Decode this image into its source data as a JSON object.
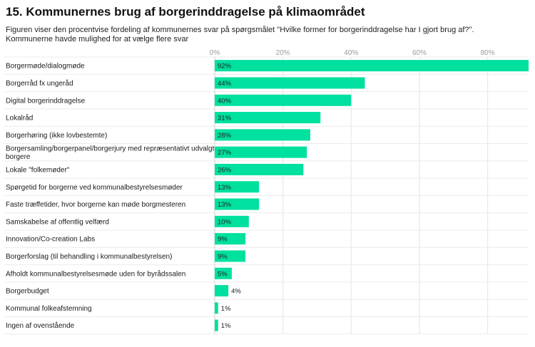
{
  "title": "15. Kommunernes brug af borgerinddragelse på klimaområdet",
  "subtitle": [
    "Figuren viser den procentvise fordeling af kommunernes svar på spørgsmålet \"Hvilke former for borgerinddragelse har I gjort brug af?\".",
    "Kommunerne havde mulighed for at vælge flere svar"
  ],
  "colors": {
    "bar": "#00e09e",
    "grid": "#e4e4e4",
    "row_line": "#ececec"
  },
  "chart_data": {
    "type": "bar",
    "orientation": "horizontal",
    "title": "15. Kommunernes brug af borgerinddragelse på klimaområdet",
    "xlim": [
      0,
      92
    ],
    "ticks": [
      0,
      20,
      40,
      60,
      80
    ],
    "tick_labels": [
      "0%",
      "20%",
      "40%",
      "60%",
      "80%"
    ],
    "grid": true,
    "categories": [
      [
        "Borgermøde/dialogmøde"
      ],
      [
        "Borgerråd fx ungeråd"
      ],
      [
        "Digital borgerinddragelse"
      ],
      [
        "Lokalråd"
      ],
      [
        "Borgerhøring (ikke lovbestemte)"
      ],
      [
        "Borgersamling/borgerpanel/borgerjury med repræsentativt udvalgte",
        "borgere"
      ],
      [
        "Lokale \"folkemøder\""
      ],
      [
        "Spørgetid for borgerne ved kommunalbestyrelsesmøder"
      ],
      [
        "Faste træffetider, hvor borgerne kan møde borgmesteren"
      ],
      [
        "Samskabelse af offentlig velfærd"
      ],
      [
        "Innovation/Co-creation Labs"
      ],
      [
        "Borgerforslag (til behandling i kommunalbestyrelsen)"
      ],
      [
        "Afholdt kommunalbestyrelsesmøde uden for byrådssalen"
      ],
      [
        "Borgerbudget"
      ],
      [
        "Kommunal folkeafstemning"
      ],
      [
        "Ingen af ovenstående"
      ]
    ],
    "values": [
      92,
      44,
      40,
      31,
      28,
      27,
      26,
      13,
      13,
      10,
      9,
      9,
      5,
      4,
      1,
      1
    ],
    "value_labels": [
      "92%",
      "44%",
      "40%",
      "31%",
      "28%",
      "27%",
      "26%",
      "13%",
      "13%",
      "10%",
      "9%",
      "9%",
      "5%",
      "4%",
      "1%",
      "1%"
    ]
  }
}
